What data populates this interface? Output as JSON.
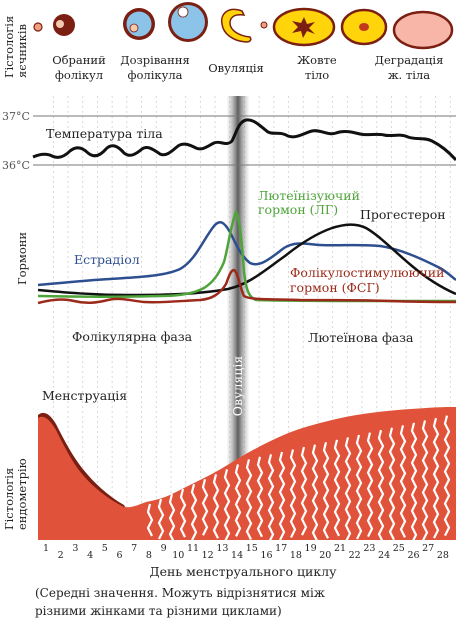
{
  "ovary": {
    "side_label": [
      "Гістологія",
      "яєчників"
    ],
    "stages": [
      {
        "label": [
          "Обраний",
          "фолікул"
        ]
      },
      {
        "label": [
          "Дозрівання",
          "фолікула"
        ]
      },
      {
        "label": [
          "Овуляція"
        ]
      },
      {
        "label": [
          "Жовте",
          "тіло"
        ]
      },
      {
        "label": [
          "Деградація",
          "ж. тіла"
        ]
      }
    ]
  },
  "temperature": {
    "label": "Температура тіла",
    "ticks": [
      "37°C",
      "36°C"
    ]
  },
  "hormones": {
    "side_label": "Гормони",
    "labels": {
      "lh": [
        "Лютеїнізуючий",
        "гормон (ЛГ)"
      ],
      "progesterone": "Прогестерон",
      "estradiol": "Естрадіол",
      "fsh": [
        "Фолікулостимулюючий",
        "гормон (ФСГ)"
      ]
    },
    "colors": {
      "lh": "#4ea33a",
      "progesterone": "#111111",
      "estradiol": "#2e4f8f",
      "fsh": "#9b2a1a"
    }
  },
  "phases": {
    "follicular": "Фолікулярна фаза",
    "luteal": "Лютеїнова фаза"
  },
  "ovulation_label": "Овуляція",
  "endometrium": {
    "side_label": [
      "Гістологія",
      "ендометрію"
    ],
    "menstruation_label": "Менструація",
    "color": "#e0533a"
  },
  "days": [
    "1",
    "2",
    "3",
    "4",
    "5",
    "6",
    "7",
    "8",
    "9",
    "10",
    "11",
    "12",
    "13",
    "14",
    "15",
    "16",
    "17",
    "18",
    "19",
    "20",
    "21",
    "22",
    "23",
    "24",
    "25",
    "26",
    "27",
    "28"
  ],
  "x_axis_label": "День менструального циклу",
  "note": [
    "(Середні значення. Можуть відрізнятися між",
    "різними жінками та різними циклами)"
  ]
}
